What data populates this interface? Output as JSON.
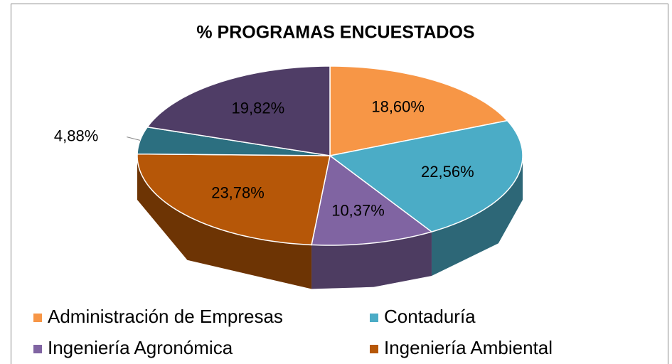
{
  "chart_data": {
    "type": "pie3d",
    "title": "% PROGRAMAS ENCUESTADOS",
    "categories": [
      "Administración de Empresas",
      "Contaduría",
      "Ingeniería Agronómica",
      "Ingeniería Ambiental",
      null,
      null
    ],
    "values": [
      18.6,
      22.56,
      10.37,
      23.78,
      4.88,
      19.82
    ],
    "value_labels": [
      "18,60%",
      "22,56%",
      "10,37%",
      "23,78%",
      "4,88%",
      "19,82%"
    ],
    "colors": [
      "#f79646",
      "#4bacc6",
      "#8064a2",
      "#b65708",
      "#2c6f80",
      "#4f3d66"
    ],
    "legend": "bottom"
  }
}
